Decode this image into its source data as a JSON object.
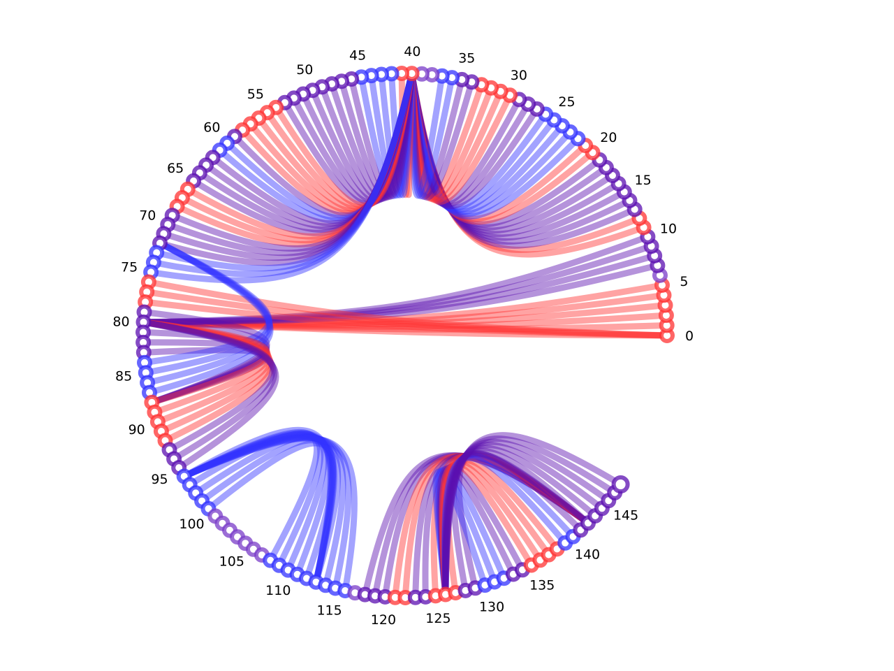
{
  "chart_data": {
    "type": "chord",
    "title": "",
    "node_count": 148,
    "tick_labels": [
      "0",
      "5",
      "10",
      "15",
      "20",
      "25",
      "30",
      "35",
      "40",
      "45",
      "50",
      "55",
      "60",
      "65",
      "70",
      "75",
      "80",
      "85",
      "90",
      "95",
      "100",
      "105",
      "110",
      "115",
      "120",
      "125",
      "130",
      "135",
      "140",
      "145"
    ],
    "colors": {
      "red": "#ff3333",
      "blue": "#3333ff",
      "purple": "#5b0fb0",
      "node": "#7a3cc8"
    },
    "bundles": [
      {
        "name": "",
        "color": "red",
        "nodes": [
          0,
          1,
          2,
          3,
          4,
          5
        ],
        "hub": 80
      },
      {
        "name": "",
        "color": "purple",
        "nodes": [
          7,
          8,
          9,
          10
        ],
        "hub": 80
      },
      {
        "name": "",
        "color": "red",
        "nodes": [
          11,
          12
        ],
        "hub": 40
      },
      {
        "name": "",
        "color": "purple",
        "nodes": [
          13,
          14,
          15,
          16,
          17,
          18,
          19
        ],
        "hub": 40
      },
      {
        "name": "",
        "color": "red",
        "nodes": [
          20,
          21
        ],
        "hub": 40
      },
      {
        "name": "",
        "color": "blue",
        "nodes": [
          22,
          23,
          24,
          25,
          26
        ],
        "hub": 40
      },
      {
        "name": "",
        "color": "purple",
        "nodes": [
          27,
          28,
          29
        ],
        "hub": 40
      },
      {
        "name": "",
        "color": "red",
        "nodes": [
          30,
          31,
          32,
          33
        ],
        "hub": 40
      },
      {
        "name": "",
        "color": "purple",
        "nodes": [
          34,
          35
        ],
        "hub": 40
      },
      {
        "name": "",
        "color": "blue",
        "nodes": [
          36,
          37
        ],
        "hub": 40
      },
      {
        "name": "",
        "color": "red",
        "nodes": [
          40,
          41
        ],
        "hub": 40
      },
      {
        "name": "",
        "color": "blue",
        "nodes": [
          42,
          43,
          44,
          45
        ],
        "hub": 40
      },
      {
        "name": "",
        "color": "purple",
        "nodes": [
          46,
          47,
          48,
          49,
          50
        ],
        "hub": 40
      },
      {
        "name": "",
        "color": "purple",
        "nodes": [
          51,
          52,
          53
        ],
        "hub": 40
      },
      {
        "name": "",
        "color": "red",
        "nodes": [
          54,
          55,
          56,
          57,
          58
        ],
        "hub": 40
      },
      {
        "name": "",
        "color": "purple",
        "nodes": [
          59
        ],
        "hub": 40
      },
      {
        "name": "",
        "color": "blue",
        "nodes": [
          60,
          61
        ],
        "hub": 40
      },
      {
        "name": "",
        "color": "purple",
        "nodes": [
          62,
          63,
          64,
          65
        ],
        "hub": 40
      },
      {
        "name": "",
        "color": "red",
        "nodes": [
          66,
          67,
          68
        ],
        "hub": 40
      },
      {
        "name": "",
        "color": "purple",
        "nodes": [
          69,
          70,
          71,
          72
        ],
        "hub": 40
      },
      {
        "name": "",
        "color": "blue",
        "nodes": [
          73,
          74,
          75
        ],
        "hub": 40
      },
      {
        "name": "",
        "color": "red",
        "nodes": [
          76,
          77,
          78
        ],
        "hub": 0
      },
      {
        "name": "",
        "color": "purple",
        "nodes": [
          79,
          80,
          81,
          82,
          83
        ],
        "hub": 88
      },
      {
        "name": "",
        "color": "blue",
        "nodes": [
          84,
          85,
          86,
          87
        ],
        "hub": 72
      },
      {
        "name": "",
        "color": "red",
        "nodes": [
          88,
          89,
          90,
          91,
          92
        ],
        "hub": 80
      },
      {
        "name": "",
        "color": "purple",
        "nodes": [
          93,
          94,
          95
        ],
        "hub": 80
      },
      {
        "name": "",
        "color": "blue",
        "nodes": [
          96,
          97,
          98,
          99,
          100
        ],
        "hub": 113
      },
      {
        "name": "",
        "color": "blue",
        "nodes": [
          108,
          109,
          110,
          111,
          112,
          113,
          114,
          115,
          116
        ],
        "hub": 96
      },
      {
        "name": "",
        "color": "purple",
        "nodes": [
          118,
          119,
          120
        ],
        "hub": 142
      },
      {
        "name": "",
        "color": "red",
        "nodes": [
          121,
          122
        ],
        "hub": 142
      },
      {
        "name": "",
        "color": "purple",
        "nodes": [
          123,
          124
        ],
        "hub": 142
      },
      {
        "name": "",
        "color": "red",
        "nodes": [
          125,
          126,
          127
        ],
        "hub": 142
      },
      {
        "name": "",
        "color": "purple",
        "nodes": [
          128,
          129
        ],
        "hub": 142
      },
      {
        "name": "",
        "color": "blue",
        "nodes": [
          130,
          131,
          132
        ],
        "hub": 126
      },
      {
        "name": "",
        "color": "purple",
        "nodes": [
          133,
          134
        ],
        "hub": 126
      },
      {
        "name": "",
        "color": "red",
        "nodes": [
          135,
          136,
          137,
          138
        ],
        "hub": 126
      },
      {
        "name": "",
        "color": "blue",
        "nodes": [
          139,
          140
        ],
        "hub": 126
      },
      {
        "name": "",
        "color": "purple",
        "nodes": [
          141,
          142,
          143,
          144,
          145,
          146,
          147
        ],
        "hub": 126
      }
    ]
  }
}
